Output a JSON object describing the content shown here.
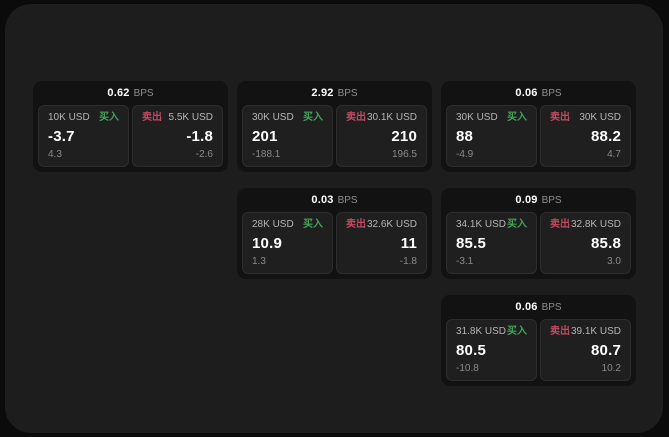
{
  "labels": {
    "bps": "BPS",
    "buy": "买入",
    "sell": "卖出"
  },
  "colors": {
    "buy": "#43a35c",
    "sell": "#c04a62",
    "window_bg": "#1d1d1d",
    "card_bg": "#121212",
    "panel_bg": "#1f1f1f"
  },
  "cards": [
    {
      "bps": "0.62",
      "buy": {
        "amount": "10K USD",
        "price": "-3.7",
        "change": "4.3"
      },
      "sell": {
        "amount": "5.5K USD",
        "price": "-1.8",
        "change": "-2.6"
      }
    },
    {
      "bps": "2.92",
      "buy": {
        "amount": "30K USD",
        "price": "201",
        "change": "-188.1"
      },
      "sell": {
        "amount": "30.1K USD",
        "price": "210",
        "change": "196.5"
      }
    },
    {
      "bps": "0.06",
      "buy": {
        "amount": "30K USD",
        "price": "88",
        "change": "-4.9"
      },
      "sell": {
        "amount": "30K USD",
        "price": "88.2",
        "change": "4.7"
      }
    },
    {
      "bps": "0.03",
      "buy": {
        "amount": "28K USD",
        "price": "10.9",
        "change": "1.3"
      },
      "sell": {
        "amount": "32.6K USD",
        "price": "11",
        "change": "-1.8"
      }
    },
    {
      "bps": "0.09",
      "buy": {
        "amount": "34.1K USD",
        "price": "85.5",
        "change": "-3.1"
      },
      "sell": {
        "amount": "32.8K USD",
        "price": "85.8",
        "change": "3.0"
      }
    },
    {
      "bps": "0.06",
      "buy": {
        "amount": "31.8K USD",
        "price": "80.5",
        "change": "-10.8"
      },
      "sell": {
        "amount": "39.1K USD",
        "price": "80.7",
        "change": "10.2"
      }
    }
  ]
}
